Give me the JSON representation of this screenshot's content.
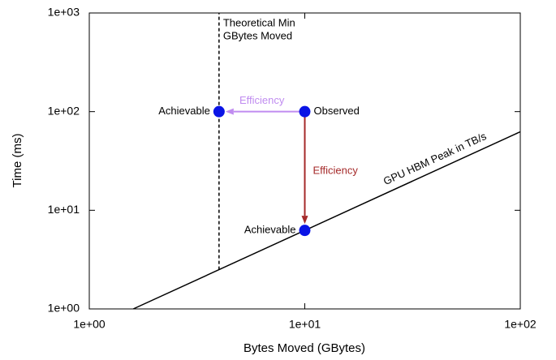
{
  "chart_data": {
    "type": "scatter",
    "xlabel": "Bytes Moved (GBytes)",
    "ylabel": "Time (ms)",
    "xscale": "log",
    "yscale": "log",
    "xlim": [
      1,
      100
    ],
    "ylim": [
      1,
      1000
    ],
    "xticks": [
      {
        "value": 1,
        "label": "1e+00"
      },
      {
        "value": 10,
        "label": "1e+01"
      },
      {
        "value": 100,
        "label": "1e+02"
      }
    ],
    "yticks": [
      {
        "value": 1,
        "label": "1e+00"
      },
      {
        "value": 10,
        "label": "1e+01"
      },
      {
        "value": 100,
        "label": "1e+02"
      },
      {
        "value": 1000,
        "label": "1e+03"
      }
    ],
    "points": {
      "color": "#0a14e6",
      "x": [
        4,
        10,
        10
      ],
      "values": [
        100,
        100,
        6.25
      ],
      "labels": [
        "Achievable",
        "Observed",
        "Achievable"
      ]
    },
    "lines": [
      {
        "name": "GPU HBM Peak in TB/s",
        "color": "#000000",
        "dash": false,
        "x": [
          1.6,
          100
        ],
        "values": [
          1,
          62.5
        ]
      },
      {
        "name": [
          "Theoretical Min",
          "GBytes Moved"
        ],
        "color": "#000000",
        "dash": true,
        "x": [
          4,
          4
        ],
        "values": [
          2.5,
          1000
        ]
      }
    ],
    "arrows": [
      {
        "text": "Efficiency",
        "color": "#c08cf0",
        "from": [
          10,
          100
        ],
        "to": [
          4,
          100
        ]
      },
      {
        "text": "Efficiency",
        "color": "#a52a2a",
        "from": [
          10,
          100
        ],
        "to": [
          10,
          6.25
        ]
      }
    ]
  }
}
